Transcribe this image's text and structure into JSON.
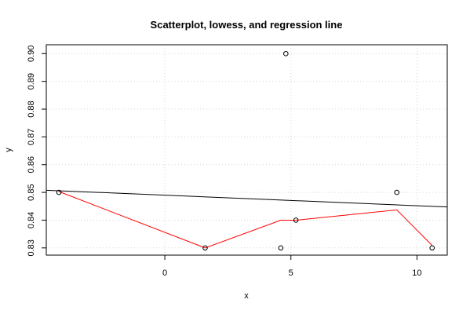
{
  "chart_data": {
    "type": "scatter",
    "title": "Scatterplot, lowess, and regression line",
    "xlabel": "x",
    "ylabel": "y",
    "xlim": [
      -4.7,
      11.2
    ],
    "ylim": [
      0.8274,
      0.9032
    ],
    "grid": true,
    "xticks": [
      0,
      5,
      10
    ],
    "yticks": [
      0.83,
      0.84,
      0.85,
      0.86,
      0.87,
      0.88,
      0.89,
      0.9
    ],
    "ytick_labels": [
      "0.83",
      "0.84",
      "0.85",
      "0.86",
      "0.87",
      "0.88",
      "0.89",
      "0.90"
    ],
    "points": [
      {
        "x": -4.2,
        "y": 0.85
      },
      {
        "x": 1.6,
        "y": 0.83
      },
      {
        "x": 4.6,
        "y": 0.83
      },
      {
        "x": 4.8,
        "y": 0.9
      },
      {
        "x": 5.2,
        "y": 0.84
      },
      {
        "x": 9.2,
        "y": 0.85
      },
      {
        "x": 10.6,
        "y": 0.83
      }
    ],
    "lowess": {
      "color": "#ff0000",
      "x": [
        -4.2,
        1.6,
        4.6,
        5.2,
        9.2,
        10.6
      ],
      "y": [
        0.8503,
        0.83,
        0.84,
        0.84,
        0.8437,
        0.8309
      ]
    },
    "regression": {
      "color": "#000000",
      "intercept": 0.849,
      "slope": -0.00038
    },
    "colors": {
      "points": "#000000",
      "grid": "#d3d3d3"
    }
  }
}
